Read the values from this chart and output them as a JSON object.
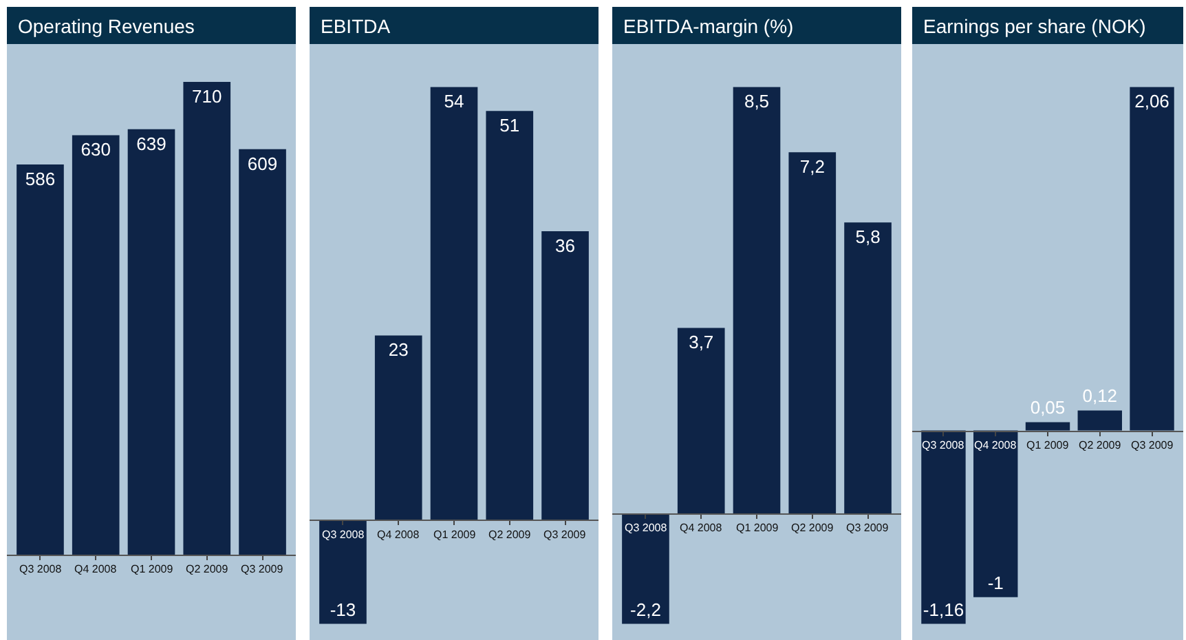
{
  "chart_data": [
    {
      "type": "bar",
      "title": "Operating Revenues",
      "categories": [
        "Q3 2008",
        "Q4 2008",
        "Q1 2009",
        "Q2 2009",
        "Q3 2009"
      ],
      "values": [
        586,
        630,
        639,
        710,
        609
      ],
      "color": "#0e2447",
      "data_labels": true
    },
    {
      "type": "bar",
      "title": "EBITDA",
      "categories": [
        "Q3 2008",
        "Q4 2008",
        "Q1 2009",
        "Q2 2009",
        "Q3 2009"
      ],
      "values": [
        -13,
        23,
        54,
        51,
        36
      ],
      "color": "#0e2447",
      "data_labels": true
    },
    {
      "type": "bar",
      "title": "EBITDA-margin (%)",
      "categories": [
        "Q3 2008",
        "Q4 2008",
        "Q1 2009",
        "Q2 2009",
        "Q3 2009"
      ],
      "values": [
        -2.2,
        3.7,
        8.5,
        7.2,
        5.8
      ],
      "value_labels": [
        "-2,2",
        "3,7",
        "8,5",
        "7,2",
        "5,8"
      ],
      "color": "#0e2447"
    },
    {
      "type": "bar",
      "title": "Earnings per share (NOK)",
      "categories": [
        "Q3 2008",
        "Q4 2008",
        "Q1 2009",
        "Q2 2009",
        "Q3 2009"
      ],
      "values": [
        -1.16,
        -1,
        0.05,
        0.12,
        2.06
      ],
      "value_labels": [
        "-1,16",
        "-1",
        "0,05",
        "0,12",
        "2,06"
      ],
      "color": "#0e2447"
    }
  ]
}
